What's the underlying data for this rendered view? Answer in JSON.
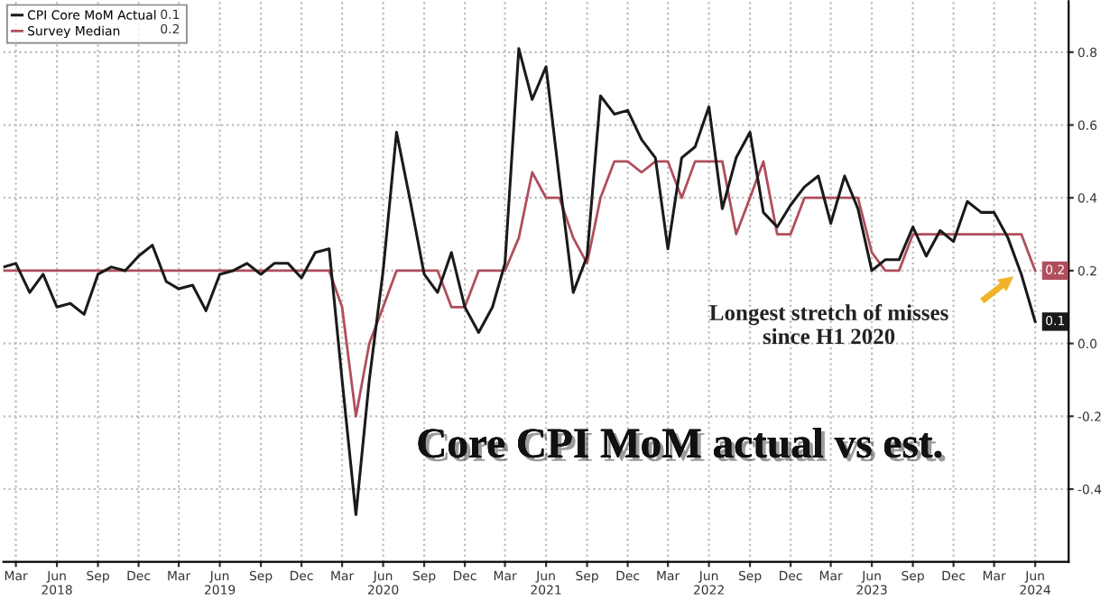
{
  "chart_data": {
    "type": "line",
    "title": "Core CPI MoM actual vs est.",
    "x": [
      "2018-02",
      "2018-03",
      "2018-04",
      "2018-05",
      "2018-06",
      "2018-07",
      "2018-08",
      "2018-09",
      "2018-10",
      "2018-11",
      "2018-12",
      "2019-01",
      "2019-02",
      "2019-03",
      "2019-04",
      "2019-05",
      "2019-06",
      "2019-07",
      "2019-08",
      "2019-09",
      "2019-10",
      "2019-11",
      "2019-12",
      "2020-01",
      "2020-02",
      "2020-03",
      "2020-04",
      "2020-05",
      "2020-06",
      "2020-07",
      "2020-08",
      "2020-09",
      "2020-10",
      "2020-11",
      "2020-12",
      "2021-01",
      "2021-02",
      "2021-03",
      "2021-04",
      "2021-05",
      "2021-06",
      "2021-07",
      "2021-08",
      "2021-09",
      "2021-10",
      "2021-11",
      "2021-12",
      "2022-01",
      "2022-02",
      "2022-03",
      "2022-04",
      "2022-05",
      "2022-06",
      "2022-07",
      "2022-08",
      "2022-09",
      "2022-10",
      "2022-11",
      "2022-12",
      "2023-01",
      "2023-02",
      "2023-03",
      "2023-04",
      "2023-05",
      "2023-06",
      "2023-07",
      "2023-08",
      "2023-09",
      "2023-10",
      "2023-11",
      "2023-12",
      "2024-01",
      "2024-02",
      "2024-03",
      "2024-04",
      "2024-05",
      "2024-06"
    ],
    "series": [
      {
        "name": "CPI Core MoM Actual",
        "color": "#1a1a1a",
        "values": [
          0.21,
          0.22,
          0.14,
          0.19,
          0.1,
          0.11,
          0.08,
          0.19,
          0.21,
          0.2,
          0.24,
          0.27,
          0.17,
          0.15,
          0.16,
          0.09,
          0.19,
          0.2,
          0.22,
          0.19,
          0.22,
          0.22,
          0.18,
          0.25,
          0.26,
          -0.1,
          -0.47,
          -0.1,
          0.2,
          0.58,
          0.39,
          0.19,
          0.14,
          0.25,
          0.1,
          0.03,
          0.1,
          0.22,
          0.81,
          0.67,
          0.76,
          0.45,
          0.14,
          0.24,
          0.68,
          0.63,
          0.64,
          0.56,
          0.51,
          0.26,
          0.51,
          0.54,
          0.65,
          0.37,
          0.51,
          0.58,
          0.36,
          0.32,
          0.38,
          0.43,
          0.46,
          0.33,
          0.46,
          0.37,
          0.2,
          0.23,
          0.23,
          0.32,
          0.24,
          0.31,
          0.28,
          0.39,
          0.36,
          0.36,
          0.29,
          0.19,
          0.06
        ],
        "value_labels": [
          null,
          null,
          null,
          null,
          null,
          null,
          null,
          null,
          null,
          null,
          null,
          null,
          null,
          null,
          null,
          null,
          null,
          null,
          null,
          null,
          null,
          null,
          null,
          null,
          null,
          null,
          null,
          null,
          null,
          null,
          null,
          null,
          null,
          null,
          null,
          null,
          null,
          null,
          null,
          null,
          null,
          null,
          null,
          null,
          null,
          null,
          null,
          null,
          null,
          null,
          null,
          null,
          null,
          null,
          null,
          null,
          null,
          null,
          null,
          null,
          null,
          null,
          null,
          null,
          null,
          null,
          null,
          null,
          null,
          null,
          null,
          null,
          null,
          null,
          null,
          null,
          "0.1"
        ]
      },
      {
        "name": "Survey Median",
        "color": "#b04e5c",
        "values": [
          0.2,
          0.2,
          0.2,
          0.2,
          0.2,
          0.2,
          0.2,
          0.2,
          0.2,
          0.2,
          0.2,
          0.2,
          0.2,
          0.2,
          0.2,
          0.2,
          0.2,
          0.2,
          0.2,
          0.2,
          0.2,
          0.2,
          0.2,
          0.2,
          0.2,
          0.1,
          -0.2,
          0.0,
          0.1,
          0.2,
          0.2,
          0.2,
          0.2,
          0.1,
          0.1,
          0.2,
          0.2,
          0.2,
          0.29,
          0.47,
          0.4,
          0.4,
          0.29,
          0.22,
          0.4,
          0.5,
          0.5,
          0.47,
          0.5,
          0.5,
          0.4,
          0.5,
          0.5,
          0.5,
          0.3,
          0.4,
          0.5,
          0.3,
          0.3,
          0.4,
          0.4,
          0.4,
          0.4,
          0.4,
          0.25,
          0.2,
          0.2,
          0.3,
          0.3,
          0.3,
          0.3,
          0.3,
          0.3,
          0.3,
          0.3,
          0.3,
          0.2
        ],
        "value_labels": [
          null,
          null,
          null,
          null,
          null,
          null,
          null,
          null,
          null,
          null,
          null,
          null,
          null,
          null,
          null,
          null,
          null,
          null,
          null,
          null,
          null,
          null,
          null,
          null,
          null,
          null,
          null,
          null,
          null,
          null,
          null,
          null,
          null,
          null,
          null,
          null,
          null,
          null,
          null,
          null,
          null,
          null,
          null,
          null,
          null,
          null,
          null,
          null,
          null,
          null,
          null,
          null,
          null,
          null,
          null,
          null,
          null,
          null,
          null,
          null,
          null,
          null,
          null,
          null,
          null,
          null,
          null,
          null,
          null,
          null,
          null,
          null,
          null,
          null,
          null,
          null,
          "0.2"
        ]
      }
    ],
    "xlim": [
      "2018-02",
      "2024-08-15"
    ],
    "xticks": [
      {
        "value": "2018-03",
        "label": "Mar"
      },
      {
        "value": "2018-06",
        "label": "Jun\n2018"
      },
      {
        "value": "2018-09",
        "label": "Sep"
      },
      {
        "value": "2018-12",
        "label": "Dec"
      },
      {
        "value": "2019-03",
        "label": "Mar"
      },
      {
        "value": "2019-06",
        "label": "Jun\n2019"
      },
      {
        "value": "2019-09",
        "label": "Sep"
      },
      {
        "value": "2019-12",
        "label": "Dec"
      },
      {
        "value": "2020-03",
        "label": "Mar"
      },
      {
        "value": "2020-06",
        "label": "Jun\n2020"
      },
      {
        "value": "2020-09",
        "label": "Sep"
      },
      {
        "value": "2020-12",
        "label": "Dec"
      },
      {
        "value": "2021-03",
        "label": "Mar"
      },
      {
        "value": "2021-06",
        "label": "Jun\n2021"
      },
      {
        "value": "2021-09",
        "label": "Sep"
      },
      {
        "value": "2021-12",
        "label": "Dec"
      },
      {
        "value": "2022-03",
        "label": "Mar"
      },
      {
        "value": "2022-06",
        "label": "Jun\n2022"
      },
      {
        "value": "2022-09",
        "label": "Sep"
      },
      {
        "value": "2022-12",
        "label": "Dec"
      },
      {
        "value": "2023-03",
        "label": "Mar"
      },
      {
        "value": "2023-06",
        "label": "Jun\n2023"
      },
      {
        "value": "2023-09",
        "label": "Sep"
      },
      {
        "value": "2023-12",
        "label": "Dec"
      },
      {
        "value": "2024-03",
        "label": "Mar"
      },
      {
        "value": "2024-06",
        "label": "Jun\n2024"
      }
    ],
    "ylim": [
      -0.6,
      0.94
    ],
    "yticks": [
      -0.4,
      -0.2,
      {
        "value": 0.0,
        "label": "0.0"
      },
      0.2,
      0.4,
      0.6,
      0.8
    ],
    "grid": true,
    "legend": "top left",
    "marker": "none",
    "line_style": "solid",
    "annotations": [
      "Longest stretch of misses\nsince H1 2020"
    ]
  }
}
